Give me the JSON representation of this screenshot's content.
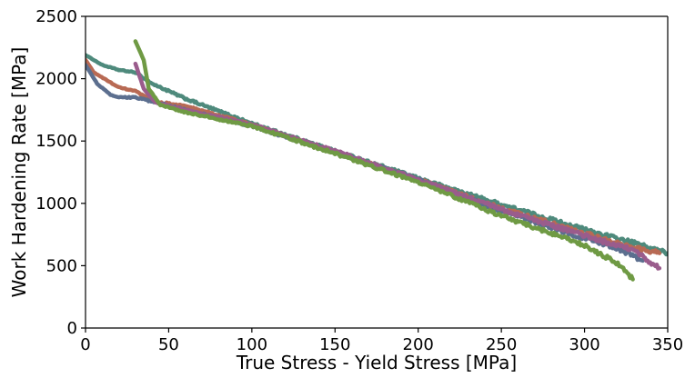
{
  "chart_data": {
    "type": "line",
    "title": "",
    "xlabel": "True Stress - Yield Stress [MPa]",
    "ylabel": "Work Hardening Rate [MPa]",
    "xlim": [
      0,
      350
    ],
    "ylim": [
      0,
      2500
    ],
    "xticks": [
      0,
      50,
      100,
      150,
      200,
      250,
      300,
      350
    ],
    "yticks": [
      0,
      500,
      1000,
      1500,
      2000,
      2500
    ],
    "grid": false,
    "legend": "none",
    "series": [
      {
        "color": "#4e8a7c",
        "points": [
          [
            0,
            2190
          ],
          [
            10,
            2110
          ],
          [
            20,
            2070
          ],
          [
            30,
            2050
          ],
          [
            40,
            1960
          ],
          [
            60,
            1840
          ],
          [
            100,
            1640
          ],
          [
            150,
            1420
          ],
          [
            200,
            1200
          ],
          [
            250,
            990
          ],
          [
            300,
            790
          ],
          [
            330,
            680
          ],
          [
            350,
            600
          ]
        ]
      },
      {
        "color": "#b86a54",
        "points": [
          [
            0,
            2150
          ],
          [
            5,
            2050
          ],
          [
            20,
            1930
          ],
          [
            30,
            1900
          ],
          [
            40,
            1820
          ],
          [
            60,
            1780
          ],
          [
            100,
            1630
          ],
          [
            150,
            1410
          ],
          [
            200,
            1190
          ],
          [
            250,
            960
          ],
          [
            300,
            760
          ],
          [
            330,
            640
          ],
          [
            345,
            600
          ]
        ]
      },
      {
        "color": "#5c6f8f",
        "points": [
          [
            0,
            2110
          ],
          [
            7,
            1960
          ],
          [
            15,
            1870
          ],
          [
            20,
            1850
          ],
          [
            30,
            1850
          ],
          [
            45,
            1800
          ],
          [
            60,
            1750
          ],
          [
            100,
            1620
          ],
          [
            150,
            1410
          ],
          [
            200,
            1190
          ],
          [
            250,
            940
          ],
          [
            300,
            720
          ],
          [
            320,
            640
          ],
          [
            335,
            540
          ]
        ]
      },
      {
        "color": "#9a5c8c",
        "points": [
          [
            30,
            2120
          ],
          [
            35,
            1920
          ],
          [
            42,
            1810
          ],
          [
            60,
            1750
          ],
          [
            100,
            1630
          ],
          [
            150,
            1420
          ],
          [
            200,
            1190
          ],
          [
            250,
            950
          ],
          [
            300,
            740
          ],
          [
            330,
            620
          ],
          [
            345,
            480
          ]
        ]
      },
      {
        "color": "#6f9a44",
        "points": [
          [
            30,
            2300
          ],
          [
            35,
            2150
          ],
          [
            38,
            1920
          ],
          [
            45,
            1790
          ],
          [
            60,
            1730
          ],
          [
            100,
            1620
          ],
          [
            150,
            1400
          ],
          [
            200,
            1170
          ],
          [
            250,
            900
          ],
          [
            280,
            760
          ],
          [
            300,
            660
          ],
          [
            320,
            520
          ],
          [
            329,
            390
          ]
        ]
      }
    ]
  }
}
